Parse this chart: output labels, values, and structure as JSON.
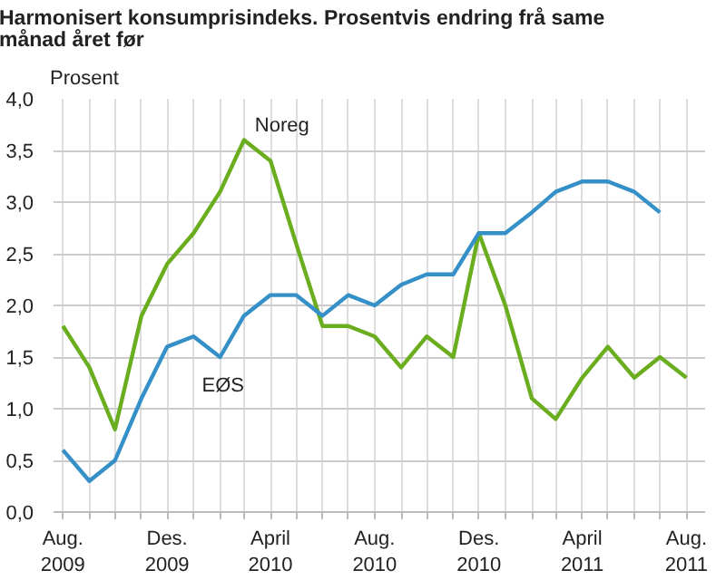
{
  "chart_data": {
    "type": "line",
    "title": "Harmonisert konsumprisindeks. Prosentvis endring frå same månad året før",
    "ylabel": "Prosent",
    "x": [
      "2009-08",
      "2009-09",
      "2009-10",
      "2009-11",
      "2009-12",
      "2010-01",
      "2010-02",
      "2010-03",
      "2010-04",
      "2010-05",
      "2010-06",
      "2010-07",
      "2010-08",
      "2010-09",
      "2010-10",
      "2010-11",
      "2010-12",
      "2011-01",
      "2011-02",
      "2011-03",
      "2011-04",
      "2011-05",
      "2011-06",
      "2011-07",
      "2011-08"
    ],
    "series": [
      {
        "name": "Noreg",
        "color": "#6aad1e",
        "values": [
          1.8,
          1.4,
          0.8,
          1.9,
          2.4,
          2.7,
          3.1,
          3.6,
          3.4,
          2.6,
          1.8,
          1.8,
          1.7,
          1.4,
          1.7,
          1.5,
          2.7,
          2.0,
          1.1,
          0.9,
          1.3,
          1.6,
          1.3,
          1.5,
          1.3
        ]
      },
      {
        "name": "EØS",
        "color": "#3590c8",
        "values": [
          0.6,
          0.3,
          0.5,
          1.1,
          1.6,
          1.7,
          1.5,
          1.9,
          2.1,
          2.1,
          1.9,
          2.1,
          2.0,
          2.2,
          2.3,
          2.3,
          2.7,
          2.7,
          2.9,
          3.1,
          3.2,
          3.2,
          3.1,
          2.9,
          null
        ]
      }
    ],
    "xlim": [
      "2009-08",
      "2011-08"
    ],
    "xticks": [
      {
        "value": "2009-08",
        "label": "Aug.\n2009"
      },
      {
        "value": "2009-09",
        "label": null
      },
      {
        "value": "2009-10",
        "label": null
      },
      {
        "value": "2009-11",
        "label": null
      },
      {
        "value": "2009-12",
        "label": "Des.\n2009"
      },
      {
        "value": "2010-01",
        "label": null
      },
      {
        "value": "2010-02",
        "label": null
      },
      {
        "value": "2010-03",
        "label": null
      },
      {
        "value": "2010-04",
        "label": "April\n2010"
      },
      {
        "value": "2010-05",
        "label": null
      },
      {
        "value": "2010-06",
        "label": null
      },
      {
        "value": "2010-07",
        "label": null
      },
      {
        "value": "2010-08",
        "label": "Aug.\n2010"
      },
      {
        "value": "2010-09",
        "label": null
      },
      {
        "value": "2010-10",
        "label": null
      },
      {
        "value": "2010-11",
        "label": null
      },
      {
        "value": "2010-12",
        "label": "Des.\n2010"
      },
      {
        "value": "2011-01",
        "label": null
      },
      {
        "value": "2011-02",
        "label": null
      },
      {
        "value": "2011-03",
        "label": null
      },
      {
        "value": "2011-04",
        "label": "April\n2011"
      },
      {
        "value": "2011-05",
        "label": null
      },
      {
        "value": "2011-06",
        "label": null
      },
      {
        "value": "2011-07",
        "label": null
      },
      {
        "value": "2011-08",
        "label": "Aug.\n2011"
      }
    ],
    "ylim": [
      0,
      4
    ],
    "yticks": [
      {
        "value": 0,
        "label": "0,0"
      },
      {
        "value": 0.5,
        "label": "0,5"
      },
      {
        "value": 1,
        "label": "1,0"
      },
      {
        "value": 1.5,
        "label": "1,5"
      },
      {
        "value": 2,
        "label": "2,0"
      },
      {
        "value": 2.5,
        "label": "2,5"
      },
      {
        "value": 3,
        "label": "3,0"
      },
      {
        "value": 3.5,
        "label": "3,5"
      },
      {
        "value": 4,
        "label": "4,0"
      }
    ],
    "grid": true,
    "legend": false,
    "marker": "none",
    "line_style": "solid"
  }
}
